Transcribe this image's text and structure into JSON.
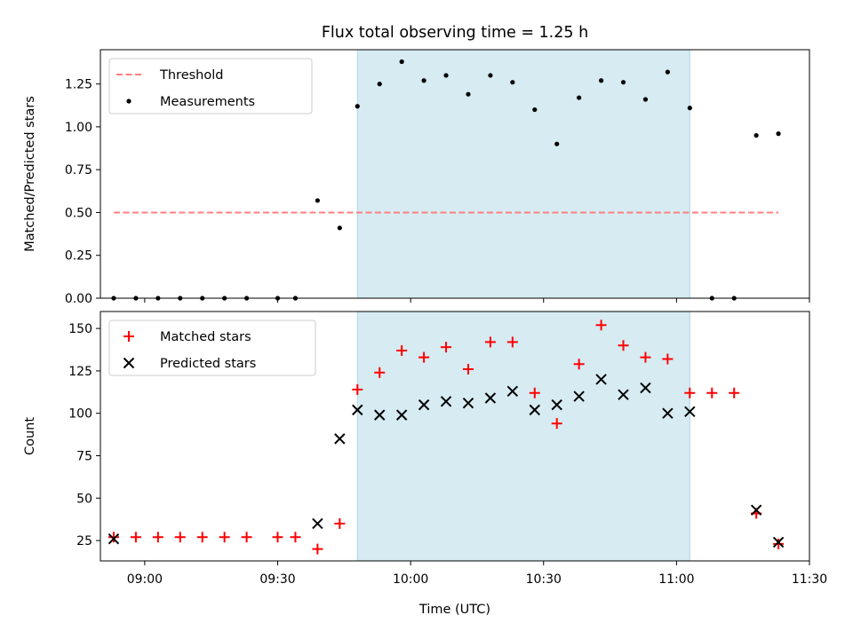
{
  "title": "Flux total observing time = 1.25 h",
  "colors": {
    "shade": "#add8e6",
    "threshold": "#ff7f7f",
    "measurement": "#000000",
    "matched": "#ff0000",
    "predicted": "#000000"
  },
  "chart_data": [
    {
      "type": "scatter",
      "ylabel": "Matched/Predicted stars",
      "ylim": [
        0,
        1.45
      ],
      "yticks": [
        0.0,
        0.25,
        0.5,
        0.75,
        1.0,
        1.25
      ],
      "ytick_labels": [
        "0.00",
        "0.25",
        "0.50",
        "0.75",
        "1.00",
        "1.25"
      ],
      "xlim": [
        "08:50",
        "11:30"
      ],
      "xticks": [
        "09:00",
        "09:30",
        "10:00",
        "10:30",
        "11:00",
        "11:30"
      ],
      "legend": {
        "placement": "upper-left",
        "entries": [
          "Threshold",
          "Measurements"
        ]
      },
      "shaded_interval": [
        "09:48",
        "11:03"
      ],
      "threshold": {
        "name": "Threshold",
        "y": 0.5,
        "x_range": [
          "08:53",
          "11:23"
        ]
      },
      "series": [
        {
          "name": "Measurements",
          "x": [
            "08:53",
            "08:58",
            "09:03",
            "09:08",
            "09:13",
            "09:18",
            "09:23",
            "09:30",
            "09:34",
            "09:39",
            "09:44",
            "09:48",
            "09:53",
            "09:58",
            "10:03",
            "10:08",
            "10:13",
            "10:18",
            "10:23",
            "10:28",
            "10:33",
            "10:38",
            "10:43",
            "10:48",
            "10:53",
            "10:58",
            "11:03",
            "11:08",
            "11:13",
            "11:18",
            "11:23"
          ],
          "y": [
            0.0,
            0.0,
            0.0,
            0.0,
            0.0,
            0.0,
            0.0,
            0.0,
            0.0,
            0.57,
            0.41,
            1.12,
            1.25,
            1.38,
            1.27,
            1.3,
            1.19,
            1.3,
            1.26,
            1.1,
            0.9,
            1.17,
            1.27,
            1.26,
            1.16,
            1.32,
            1.11,
            0.0,
            0.0,
            0.95,
            0.96
          ]
        }
      ]
    },
    {
      "type": "scatter",
      "xlabel": "Time (UTC)",
      "ylabel": "Count",
      "ylim": [
        13,
        160
      ],
      "yticks": [
        25,
        50,
        75,
        100,
        125,
        150
      ],
      "ytick_labels": [
        "25",
        "50",
        "75",
        "100",
        "125",
        "150"
      ],
      "xlim": [
        "08:50",
        "11:30"
      ],
      "xticks": [
        "09:00",
        "09:30",
        "10:00",
        "10:30",
        "11:00",
        "11:30"
      ],
      "xtick_labels": [
        "09:00",
        "09:30",
        "10:00",
        "10:30",
        "11:00",
        "11:30"
      ],
      "legend": {
        "placement": "upper-left",
        "entries": [
          "Matched stars",
          "Predicted stars"
        ]
      },
      "shaded_interval": [
        "09:48",
        "11:03"
      ],
      "series": [
        {
          "name": "Matched stars",
          "marker": "plus",
          "x": [
            "08:53",
            "08:58",
            "09:03",
            "09:08",
            "09:13",
            "09:18",
            "09:23",
            "09:30",
            "09:34",
            "09:39",
            "09:44",
            "09:48",
            "09:53",
            "09:58",
            "10:03",
            "10:08",
            "10:13",
            "10:18",
            "10:23",
            "10:28",
            "10:33",
            "10:38",
            "10:43",
            "10:48",
            "10:53",
            "10:58",
            "11:03",
            "11:08",
            "11:13",
            "11:18",
            "11:23"
          ],
          "y": [
            27,
            27,
            27,
            27,
            27,
            27,
            27,
            27,
            27,
            20,
            35,
            114,
            124,
            137,
            133,
            139,
            126,
            142,
            142,
            112,
            94,
            129,
            152,
            140,
            133,
            132,
            112,
            112,
            112,
            41,
            23
          ]
        },
        {
          "name": "Predicted stars",
          "marker": "x",
          "x": [
            "08:53",
            "09:39",
            "09:44",
            "09:48",
            "09:53",
            "09:58",
            "10:03",
            "10:08",
            "10:13",
            "10:18",
            "10:23",
            "10:28",
            "10:33",
            "10:38",
            "10:43",
            "10:48",
            "10:53",
            "10:58",
            "11:03",
            "11:18",
            "11:23"
          ],
          "y": [
            26,
            35,
            85,
            102,
            99,
            99,
            105,
            107,
            106,
            109,
            113,
            102,
            105,
            110,
            120,
            111,
            115,
            100,
            101,
            43,
            24
          ]
        }
      ]
    }
  ]
}
